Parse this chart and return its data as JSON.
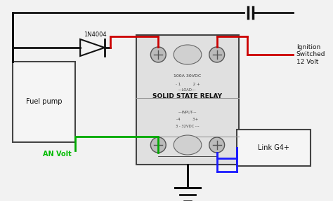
{
  "bg_color": "#f2f2f2",
  "relay_label": "SOLID STATE RELAY",
  "relay_sub1": "100A 30VDC",
  "relay_sub2": "- 1          2 +",
  "relay_sub3": "---LOAD---",
  "relay_sub4": "---INPUT---",
  "relay_sub5": "-4          3+",
  "relay_sub6": "3 - 32VDC ---",
  "fuel_pump_label": "Fuel pump",
  "link_label": "Link G4+",
  "diode_label": "1N4004",
  "ignition_label": "Ignition\nSwitched\n12 Volt",
  "an_volt_label": "AN Volt",
  "wire_black": "#111111",
  "wire_red": "#cc0000",
  "wire_green": "#00aa00",
  "wire_blue": "#1a1aff",
  "text_green": "#00bb00",
  "box_edge": "#444444",
  "box_face": "#f5f5f5",
  "relay_face": "#e0e0e0",
  "terminal_face": "#bbbbbb",
  "terminal_edge": "#555555"
}
